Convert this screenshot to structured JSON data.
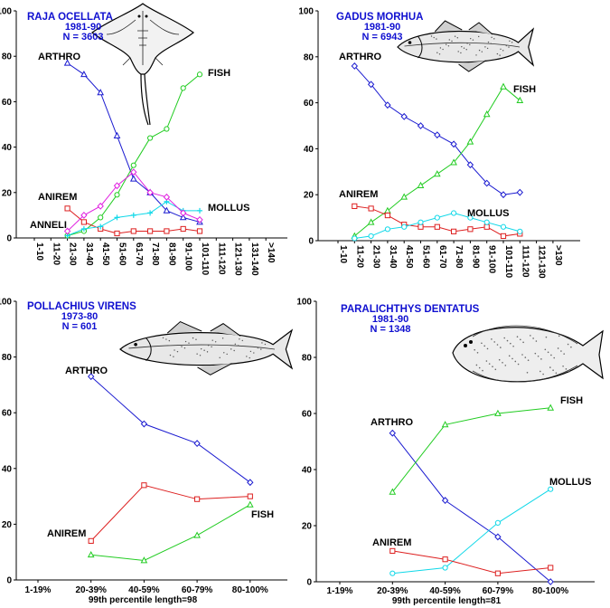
{
  "chart_data": [
    {
      "type": "line",
      "title": "RAJA OCELLATA",
      "subtitle": [
        "1981-90",
        "N = 3603"
      ],
      "image": "skate-illustration",
      "ylim": [
        0,
        100
      ],
      "yticks": [
        "0",
        "20",
        "40",
        "60",
        "80",
        "100"
      ],
      "categories": [
        "1-10",
        "11-20",
        "21-30",
        "31-40",
        "41-50",
        "51-60",
        "61-70",
        "71-80",
        "81-90",
        "91-100",
        "101-110",
        "111-120",
        "121-130",
        "131-140",
        ">140"
      ],
      "series": [
        {
          "name": "ARTHRO",
          "color": "#1a1ad0",
          "marker": "triangle",
          "values": [
            null,
            null,
            77,
            72,
            64,
            45,
            26,
            20,
            12,
            9,
            7,
            null,
            null,
            null,
            null
          ]
        },
        {
          "name": "FISH",
          "color": "#22cc22",
          "marker": "circle",
          "values": [
            null,
            null,
            1,
            3,
            9,
            19,
            32,
            44,
            48,
            66,
            72,
            null,
            null,
            null,
            null
          ]
        },
        {
          "name": "ANIREM",
          "color": "#dd2020",
          "marker": "square",
          "values": [
            null,
            null,
            13,
            7,
            4,
            2,
            3,
            3,
            3,
            4,
            3,
            null,
            null,
            null,
            null
          ]
        },
        {
          "name": "MOLLUS",
          "color": "#10d8e8",
          "marker": "cross",
          "values": [
            null,
            null,
            1,
            4,
            5,
            9,
            10,
            11,
            16,
            12,
            12,
            null,
            null,
            null,
            null
          ]
        },
        {
          "name": "ANNELI",
          "color": "#e020e0",
          "marker": "diamond",
          "values": [
            null,
            null,
            3,
            10,
            14,
            23,
            29,
            20,
            18,
            11,
            8,
            null,
            null,
            null,
            null
          ]
        }
      ]
    },
    {
      "type": "line",
      "title": "GADUS MORHUA",
      "subtitle": [
        "1981-90",
        "N = 6943"
      ],
      "image": "cod-illustration",
      "ylim": [
        0,
        100
      ],
      "yticks": [
        "0",
        "20",
        "40",
        "60",
        "80",
        "100"
      ],
      "categories": [
        "1-10",
        "11-20",
        "21-30",
        "31-40",
        "41-50",
        "51-60",
        "61-70",
        "71-80",
        "81-90",
        "91-100",
        "101-110",
        "111-120",
        "121-130",
        ">130"
      ],
      "series": [
        {
          "name": "ARTHRO",
          "color": "#1a1ad0",
          "marker": "diamond",
          "values": [
            null,
            76,
            68,
            59,
            54,
            50,
            46,
            42,
            33,
            25,
            20,
            21,
            null,
            null
          ]
        },
        {
          "name": "FISH",
          "color": "#22cc22",
          "marker": "triangle",
          "values": [
            null,
            2,
            8,
            13,
            19,
            24,
            29,
            34,
            43,
            55,
            67,
            61,
            null,
            null
          ]
        },
        {
          "name": "ANIREM",
          "color": "#dd2020",
          "marker": "square",
          "values": [
            null,
            15,
            14,
            11,
            7,
            6,
            6,
            4,
            5,
            6,
            2,
            3,
            null,
            null
          ]
        },
        {
          "name": "MOLLUS",
          "color": "#10d8e8",
          "marker": "circle",
          "values": [
            null,
            1,
            2,
            5,
            6,
            8,
            10,
            12,
            10,
            8,
            6,
            4,
            null,
            null
          ]
        }
      ]
    },
    {
      "type": "line",
      "title": "POLLACHIUS VIRENS",
      "subtitle": [
        "1973-80",
        "N = 601"
      ],
      "image": "pollock-illustration",
      "ylim": [
        0,
        100
      ],
      "yticks": [
        "0",
        "20",
        "40",
        "60",
        "80",
        "100"
      ],
      "categories": [
        "1-19%",
        "20-39%",
        "40-59%",
        "60-79%",
        "80-100%"
      ],
      "xlabel": "99th percentile  length=98",
      "series": [
        {
          "name": "ARTHRO",
          "color": "#1a1ad0",
          "marker": "diamond",
          "values": [
            null,
            73,
            56,
            49,
            35
          ]
        },
        {
          "name": "ANIREM",
          "color": "#dd2020",
          "marker": "square",
          "values": [
            null,
            14,
            34,
            29,
            30
          ]
        },
        {
          "name": "FISH",
          "color": "#22cc22",
          "marker": "triangle",
          "values": [
            null,
            9,
            7,
            16,
            27
          ]
        }
      ]
    },
    {
      "type": "line",
      "title": "PARALICHTHYS DENTATUS",
      "subtitle": [
        "1981-90",
        "N = 1348"
      ],
      "image": "flounder-illustration",
      "ylim": [
        0,
        100
      ],
      "yticks": [
        "0",
        "20",
        "40",
        "60",
        "80",
        "100"
      ],
      "categories": [
        "1-19%",
        "20-39%",
        "40-59%",
        "60-79%",
        "80-100%"
      ],
      "xlabel": "99th percentile  length=81",
      "series": [
        {
          "name": "ARTHRO",
          "color": "#1a1ad0",
          "marker": "diamond",
          "values": [
            null,
            53,
            29,
            16,
            0
          ]
        },
        {
          "name": "FISH",
          "color": "#22cc22",
          "marker": "triangle",
          "values": [
            null,
            32,
            56,
            60,
            62
          ]
        },
        {
          "name": "MOLLUS",
          "color": "#10d8e8",
          "marker": "circle",
          "values": [
            null,
            3,
            5,
            21,
            33
          ]
        },
        {
          "name": "ANIREM",
          "color": "#dd2020",
          "marker": "square",
          "values": [
            null,
            11,
            8,
            3,
            5
          ]
        }
      ]
    }
  ]
}
